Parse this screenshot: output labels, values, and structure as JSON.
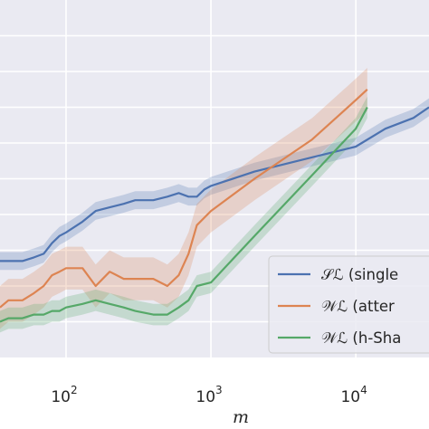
{
  "chart_data": {
    "type": "line",
    "xscale": "log",
    "xlabel": "m",
    "xlim": [
      35,
      32000
    ],
    "ylim": [
      0,
      1
    ],
    "grid": true,
    "legend_position": "lower-right",
    "xticks": [
      {
        "base": "10",
        "exp": "2",
        "value": 100
      },
      {
        "base": "10",
        "exp": "3",
        "value": 1000
      },
      {
        "base": "10",
        "exp": "4",
        "value": 10000
      }
    ],
    "series": [
      {
        "name": "𝒮ℒ (single",
        "color": "#4c72b0",
        "points": [
          [
            35,
            0.27
          ],
          [
            40,
            0.27
          ],
          [
            50,
            0.27
          ],
          [
            60,
            0.28
          ],
          [
            70,
            0.29
          ],
          [
            80,
            0.32
          ],
          [
            90,
            0.34
          ],
          [
            100,
            0.35
          ],
          [
            130,
            0.38
          ],
          [
            160,
            0.41
          ],
          [
            200,
            0.42
          ],
          [
            250,
            0.43
          ],
          [
            300,
            0.44
          ],
          [
            400,
            0.44
          ],
          [
            500,
            0.45
          ],
          [
            600,
            0.46
          ],
          [
            700,
            0.45
          ],
          [
            800,
            0.45
          ],
          [
            900,
            0.47
          ],
          [
            1000,
            0.48
          ],
          [
            2000,
            0.52
          ],
          [
            5000,
            0.56
          ],
          [
            10000,
            0.59
          ],
          [
            16000,
            0.64
          ],
          [
            25000,
            0.67
          ],
          [
            32000,
            0.7
          ]
        ],
        "band_width": 0.025
      },
      {
        "name": "𝒲ℒ (atter",
        "color": "#dd8452",
        "points": [
          [
            35,
            0.14
          ],
          [
            40,
            0.16
          ],
          [
            50,
            0.16
          ],
          [
            60,
            0.18
          ],
          [
            70,
            0.2
          ],
          [
            80,
            0.23
          ],
          [
            90,
            0.24
          ],
          [
            100,
            0.25
          ],
          [
            130,
            0.25
          ],
          [
            160,
            0.2
          ],
          [
            200,
            0.24
          ],
          [
            250,
            0.22
          ],
          [
            300,
            0.22
          ],
          [
            400,
            0.22
          ],
          [
            500,
            0.2
          ],
          [
            600,
            0.23
          ],
          [
            700,
            0.29
          ],
          [
            800,
            0.37
          ],
          [
            1000,
            0.41
          ],
          [
            2000,
            0.5
          ],
          [
            5000,
            0.61
          ],
          [
            10000,
            0.72
          ],
          [
            12000,
            0.75
          ]
        ],
        "band_width": 0.06
      },
      {
        "name": "𝒲ℒ (h-Sha",
        "color": "#55a868",
        "points": [
          [
            35,
            0.1
          ],
          [
            40,
            0.11
          ],
          [
            50,
            0.11
          ],
          [
            60,
            0.12
          ],
          [
            70,
            0.12
          ],
          [
            80,
            0.13
          ],
          [
            90,
            0.13
          ],
          [
            100,
            0.14
          ],
          [
            130,
            0.15
          ],
          [
            160,
            0.16
          ],
          [
            200,
            0.15
          ],
          [
            250,
            0.14
          ],
          [
            300,
            0.13
          ],
          [
            400,
            0.12
          ],
          [
            500,
            0.12
          ],
          [
            600,
            0.14
          ],
          [
            700,
            0.16
          ],
          [
            800,
            0.2
          ],
          [
            1000,
            0.21
          ],
          [
            2000,
            0.34
          ],
          [
            5000,
            0.51
          ],
          [
            10000,
            0.64
          ],
          [
            12000,
            0.7
          ]
        ],
        "band_width": 0.03
      }
    ]
  }
}
